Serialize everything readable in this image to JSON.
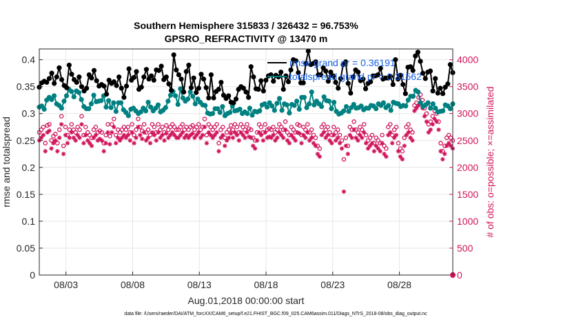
{
  "title": {
    "line1": "Southern Hemisphere 315833 / 326432 = 96.753%",
    "line2": "GPSRO_REFRACTIVITY @ 13470 m"
  },
  "footer": "data file: /Users/raeder/DAI/ATM_forcXX/CAM6_setup/f.e21.FHIST_BGC.f09_025.CAM6assim.011/Diags_NTrS_2018-08/obs_diag_output.nc",
  "colors": {
    "rmse": "#000000",
    "spread": "#008080",
    "obs": "#d0135a",
    "legend_text": "#1560e8"
  },
  "chart_data": {
    "type": "line",
    "xlabel": "Aug.01,2018 00:00:00 start",
    "ylabel_left": "rmse and totalspread",
    "ylabel_right": "# of obs: o=possible; ×=assimilated",
    "x_ticks": [
      "08/03",
      "08/08",
      "08/13",
      "08/18",
      "08/23",
      "08/28"
    ],
    "y_left_ticks": [
      "0",
      "0.05",
      "0.1",
      "0.15",
      "0.2",
      "0.25",
      "0.3",
      "0.35",
      "0.4"
    ],
    "y_right_ticks": [
      "0",
      "500",
      "1000",
      "1500",
      "2000",
      "2500",
      "3000",
      "3500",
      "4000"
    ],
    "ylim_left": [
      0,
      0.42
    ],
    "ylim_right": [
      0,
      4200
    ],
    "x_start_day": 1,
    "x_end_day": 32,
    "x_tick_days": [
      3,
      8,
      13,
      18,
      23,
      28
    ],
    "grid": true,
    "legend": [
      {
        "label": "rmse grand pr = 0.36191",
        "color": "#000000"
      },
      {
        "label": "totalspread grand pr = 0.31562",
        "color": "#008080"
      }
    ],
    "legend_placement": "top-right",
    "series": [
      {
        "name": "rmse",
        "axis": "left",
        "values": [
          0.349,
          0.357,
          0.36,
          0.358,
          0.365,
          0.375,
          0.356,
          0.368,
          0.385,
          0.363,
          0.352,
          0.348,
          0.39,
          0.373,
          0.363,
          0.358,
          0.368,
          0.35,
          0.342,
          0.347,
          0.372,
          0.366,
          0.38,
          0.361,
          0.351,
          0.354,
          0.351,
          0.336,
          0.362,
          0.356,
          0.359,
          0.352,
          0.368,
          0.347,
          0.33,
          0.351,
          0.383,
          0.362,
          0.367,
          0.378,
          0.345,
          0.349,
          0.368,
          0.382,
          0.364,
          0.37,
          0.362,
          0.381,
          0.38,
          0.388,
          0.363,
          0.368,
          0.355,
          0.343,
          0.409,
          0.381,
          0.372,
          0.364,
          0.34,
          0.378,
          0.39,
          0.348,
          0.366,
          0.339,
          0.347,
          0.373,
          0.364,
          0.348,
          0.329,
          0.372,
          0.329,
          0.341,
          0.345,
          0.358,
          0.334,
          0.328,
          0.333,
          0.321,
          0.32,
          0.327,
          0.345,
          0.35,
          0.347,
          0.34,
          0.33,
          0.387,
          0.368,
          0.346,
          0.345,
          0.361,
          0.342,
          0.362,
          0.37,
          0.372,
          0.36,
          0.371,
          0.368,
          0.377,
          0.345,
          0.37,
          0.359,
          0.381,
          0.4,
          0.398,
          0.376,
          0.357,
          0.357,
          0.393,
          0.416,
          0.391,
          0.393,
          0.396,
          0.372,
          0.372,
          0.385,
          0.379,
          0.36,
          0.377,
          0.37,
          0.358,
          0.347,
          0.365,
          0.391,
          0.396,
          0.356,
          0.338,
          0.368,
          0.381,
          0.377,
          0.361,
          0.364,
          0.346,
          0.356,
          0.359,
          0.37,
          0.37,
          0.372,
          0.384,
          0.364,
          0.366,
          0.366,
          0.369,
          0.354,
          0.4,
          0.364,
          0.371,
          0.354,
          0.337,
          0.386,
          0.387,
          0.38,
          0.407,
          0.414,
          0.397,
          0.375,
          0.365,
          0.377,
          0.379,
          0.342,
          0.365,
          0.338,
          0.347,
          0.337,
          0.349,
          0.355,
          0.391,
          0.376
        ]
      },
      {
        "name": "totalspread",
        "axis": "left",
        "values": [
          0.312,
          0.314,
          0.308,
          0.325,
          0.33,
          0.326,
          0.333,
          0.318,
          0.315,
          0.31,
          0.323,
          0.333,
          0.345,
          0.341,
          0.331,
          0.342,
          0.339,
          0.326,
          0.313,
          0.309,
          0.309,
          0.318,
          0.334,
          0.322,
          0.323,
          0.324,
          0.333,
          0.312,
          0.324,
          0.311,
          0.32,
          0.304,
          0.32,
          0.32,
          0.307,
          0.302,
          0.296,
          0.308,
          0.31,
          0.305,
          0.3,
          0.303,
          0.31,
          0.305,
          0.321,
          0.312,
          0.305,
          0.31,
          0.316,
          0.303,
          0.306,
          0.311,
          0.323,
          0.334,
          0.341,
          0.333,
          0.317,
          0.346,
          0.329,
          0.323,
          0.327,
          0.34,
          0.332,
          0.318,
          0.327,
          0.321,
          0.316,
          0.315,
          0.301,
          0.299,
          0.3,
          0.309,
          0.309,
          0.302,
          0.313,
          0.296,
          0.3,
          0.302,
          0.314,
          0.305,
          0.306,
          0.308,
          0.3,
          0.303,
          0.3,
          0.31,
          0.297,
          0.304,
          0.303,
          0.305,
          0.316,
          0.318,
          0.312,
          0.32,
          0.314,
          0.306,
          0.319,
          0.328,
          0.306,
          0.318,
          0.316,
          0.301,
          0.317,
          0.315,
          0.323,
          0.308,
          0.33,
          0.33,
          0.311,
          0.318,
          0.34,
          0.316,
          0.323,
          0.318,
          0.313,
          0.331,
          0.324,
          0.323,
          0.309,
          0.321,
          0.304,
          0.299,
          0.301,
          0.305,
          0.313,
          0.304,
          0.311,
          0.317,
          0.31,
          0.311,
          0.314,
          0.307,
          0.31,
          0.31,
          0.315,
          0.314,
          0.309,
          0.318,
          0.315,
          0.32,
          0.311,
          0.315,
          0.306,
          0.321,
          0.319,
          0.318,
          0.313,
          0.315,
          0.314,
          0.325,
          0.332,
          0.332,
          0.343,
          0.34,
          0.32,
          0.313,
          0.316,
          0.32,
          0.31,
          0.318,
          0.31,
          0.303,
          0.304,
          0.305,
          0.316,
          0.314,
          0.309,
          0.318
        ]
      },
      {
        "name": "possible",
        "axis": "right",
        "values": [
          2650,
          2700,
          2750,
          2450,
          2780,
          2800,
          2500,
          2580,
          2620,
          2450,
          2700,
          2950,
          2400,
          2750,
          2600,
          2700,
          2800,
          2700,
          2650,
          2750,
          2700,
          2950,
          2600,
          2750,
          2650,
          2600,
          2550,
          2700,
          2750,
          2650,
          2680,
          2650,
          2450,
          2600,
          2800,
          2580,
          2800,
          2900,
          2600,
          2700,
          2650,
          2700,
          2750,
          2700,
          2750,
          2650,
          2800,
          2600,
          2700,
          2900,
          2750,
          2680,
          2800,
          2650,
          2700,
          2600,
          2800,
          2750,
          2650,
          2800,
          2700,
          2750,
          2650,
          2780,
          2700,
          2750,
          2800,
          2750,
          2700,
          2700,
          2750,
          2800,
          2700,
          2750,
          2700,
          2750,
          2780,
          2700,
          2750,
          2800,
          2700,
          2750,
          2900,
          2600,
          2800,
          2750,
          2700,
          2750,
          2800,
          2450,
          2700,
          2750,
          2550,
          2650,
          2700,
          2780,
          2700,
          2800,
          2750,
          2650,
          2800,
          2750,
          2700,
          2800,
          2720,
          2700,
          2550,
          2500,
          2650,
          2800,
          2750,
          2650,
          2800,
          2700,
          2720,
          2700,
          2750,
          2650,
          2700,
          2800,
          2750,
          2700,
          2850,
          2650,
          2600,
          2750,
          2700,
          2650,
          2800,
          2780,
          2600,
          2750,
          2700,
          2800,
          2650,
          2700,
          2600,
          2550,
          2400,
          2350,
          2750,
          2800,
          2700,
          2750,
          2650,
          2600,
          2750,
          2650,
          2700,
          2600,
          2500,
          2150,
          2550,
          2400,
          2750,
          2700,
          2850,
          2700,
          2650,
          2750,
          2700,
          2800,
          2600,
          2500,
          2550,
          2600,
          2450,
          2550,
          2500,
          2450,
          2600,
          2400,
          2350,
          2750,
          2800,
          2600,
          2700,
          2750,
          2450,
          2350,
          2300,
          2550,
          2750,
          2800,
          2700,
          2650,
          3150,
          3200,
          3300,
          3350,
          3250,
          3100,
          3000,
          2800,
          2850,
          2950,
          3050,
          3000,
          2850,
          2450,
          2300,
          2400,
          2550,
          2600,
          2550,
          2500
        ]
      },
      {
        "name": "assimilated",
        "axis": "right",
        "values": [
          2500,
          2550,
          2600,
          2300,
          2650,
          2680,
          2350,
          2450,
          2500,
          2300,
          2550,
          2800,
          2250,
          2600,
          2450,
          2550,
          2650,
          2550,
          2500,
          2600,
          2550,
          2800,
          2450,
          2600,
          2500,
          2450,
          2400,
          2550,
          2600,
          2500,
          2530,
          2500,
          2300,
          2450,
          2650,
          2430,
          2650,
          2750,
          2450,
          2550,
          2500,
          2550,
          2600,
          2550,
          2600,
          2500,
          2650,
          2450,
          2550,
          2750,
          2600,
          2530,
          2650,
          2500,
          2550,
          2450,
          2650,
          2600,
          2500,
          2650,
          2550,
          2600,
          2500,
          2630,
          2550,
          2600,
          2650,
          2600,
          2550,
          2550,
          2600,
          2650,
          2550,
          2600,
          2550,
          2600,
          2630,
          2550,
          2600,
          2650,
          2550,
          2600,
          2750,
          2450,
          2650,
          2600,
          2550,
          2600,
          2650,
          2300,
          2550,
          2600,
          2400,
          2500,
          2550,
          2630,
          2550,
          2650,
          2600,
          2500,
          2650,
          2600,
          2550,
          2650,
          2570,
          2550,
          2400,
          2350,
          2500,
          2650,
          2600,
          2500,
          2650,
          2550,
          2570,
          2550,
          2600,
          2500,
          2550,
          2650,
          2600,
          2550,
          2700,
          2500,
          2450,
          2600,
          2550,
          2500,
          2650,
          2630,
          2450,
          2600,
          2550,
          2650,
          2500,
          2550,
          2450,
          2400,
          2250,
          2200,
          2600,
          2650,
          2550,
          2600,
          2500,
          2450,
          2600,
          2500,
          2550,
          2450,
          2350,
          1550,
          2400,
          2250,
          2600,
          2550,
          2700,
          2550,
          2500,
          2600,
          2550,
          2650,
          2450,
          2350,
          2400,
          2450,
          2300,
          2400,
          2350,
          2300,
          2450,
          2250,
          2200,
          2600,
          2650,
          2450,
          2550,
          2600,
          2300,
          2200,
          2150,
          2400,
          2600,
          2650,
          2550,
          2500,
          3050,
          3100,
          3150,
          3200,
          3100,
          2950,
          2850,
          2650,
          2700,
          2800,
          2900,
          2850,
          2700,
          2300,
          2150,
          2250,
          2400,
          2450,
          2400,
          2350
        ]
      }
    ]
  }
}
